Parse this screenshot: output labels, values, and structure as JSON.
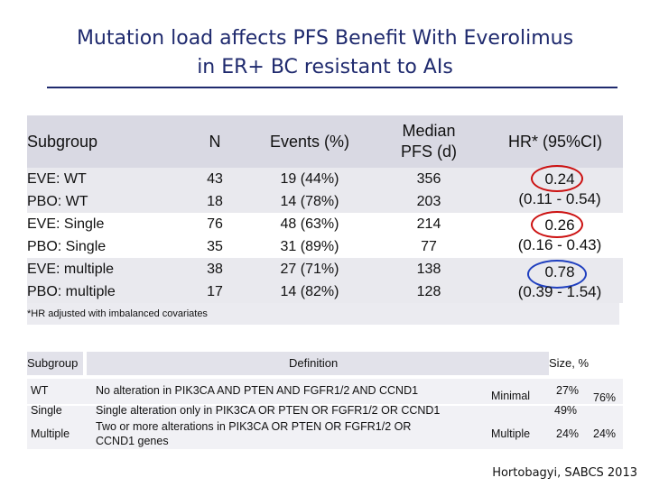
{
  "title": {
    "line1": "Mutation load affects PFS Benefit With Everolimus",
    "line2": "in ER+ BC resistant to AIs"
  },
  "main_table": {
    "headers": {
      "subgroup": "Subgroup",
      "n": "N",
      "events": "Events (%)",
      "median_l1": "Median",
      "median_l2": "PFS (d)",
      "hr": "HR* (95%CI)"
    },
    "rows": [
      {
        "subgroup": "EVE: WT",
        "n": "43",
        "events": "19 (44%)",
        "median": "356"
      },
      {
        "subgroup": "PBO: WT",
        "n": "18",
        "events": "14 (78%)",
        "median": "203"
      },
      {
        "subgroup": "EVE: Single",
        "n": "76",
        "events": "48 (63%)",
        "median": "214"
      },
      {
        "subgroup": "PBO: Single",
        "n": "35",
        "events": "31 (89%)",
        "median": "77"
      },
      {
        "subgroup": "EVE: multiple",
        "n": "38",
        "events": "27 (71%)",
        "median": "138"
      },
      {
        "subgroup": "PBO: multiple",
        "n": "17",
        "events": "14 (82%)",
        "median": "128"
      }
    ],
    "hr": [
      {
        "value": "0.24",
        "ci": "(0.11 - 0.54)"
      },
      {
        "value": "0.26",
        "ci": "(0.16 - 0.43)"
      },
      {
        "value": "0.78",
        "ci": "(0.39 - 1.54)"
      }
    ],
    "footnote": "*HR adjusted with imbalanced covariates"
  },
  "definition_table": {
    "headers": {
      "subgroup": "Subgroup",
      "definition": "Definition",
      "size": "Size, %"
    },
    "rows": {
      "wt": {
        "label": "WT",
        "definition": "No alteration in PIK3CA AND PTEN AND FGFR1/2 AND CCND1"
      },
      "single": {
        "label": "Single",
        "definition": "Single alteration only in PIK3CA OR PTEN OR FGFR1/2 OR  CCND1"
      },
      "multiple": {
        "label": "Multiple",
        "definition_l1": "Two or more alterations in PIK3CA OR PTEN OR FGFR1/2 OR",
        "definition_l2": "CCND1 genes"
      }
    },
    "minimal": {
      "label": "Minimal",
      "wt_pct": "27%",
      "single_pct": "49%",
      "total": "76%"
    },
    "multiple_group": {
      "label": "Multiple",
      "pct": "24%",
      "total": "24%"
    }
  },
  "citation": "Hortobagyi, SABCS 2013",
  "colors": {
    "title": "#1f2a6e",
    "circle_red": "#cc1111",
    "circle_blue": "#1f3fbf"
  }
}
